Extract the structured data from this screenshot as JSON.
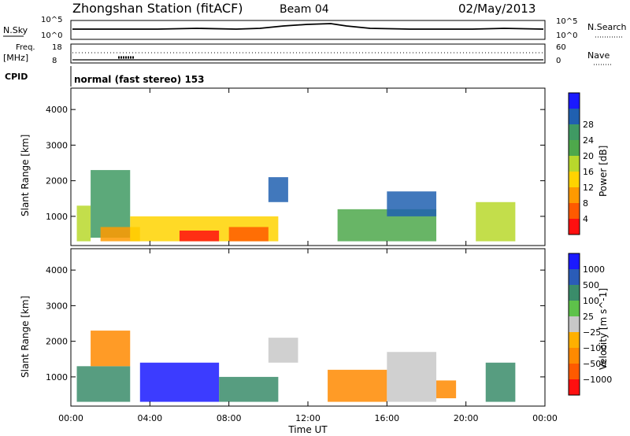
{
  "header": {
    "station": "Zhongshan Station (fitACF)",
    "beam": "Beam 04",
    "date": "02/May/2013"
  },
  "summary_panels": {
    "nsky_label": "N.Sky",
    "nsky_ticks": [
      "10^5",
      "10^0"
    ],
    "nsearch_label": "N.Search",
    "nsearch_ticks": [
      "10^5",
      "10^0"
    ],
    "freq_label": "Freq.",
    "freq_unit": "[MHz]",
    "freq_ticks": [
      "18",
      "8"
    ],
    "nave_label": "Nave",
    "nave_ticks": [
      "60",
      "0"
    ],
    "cpid_label": "CPID",
    "cpid_text": "normal (fast stereo) 153"
  },
  "chart_data": [
    {
      "type": "heatmap",
      "name": "Power",
      "ylabel": "Slant Range [km]",
      "yticks": [
        "1000",
        "2000",
        "3000",
        "4000"
      ],
      "ylim": [
        180,
        4600
      ],
      "xlim": [
        0,
        24
      ],
      "colorbar_label": "Power [dB]",
      "colorbar_ticks": [
        "4",
        "8",
        "12",
        "16",
        "20",
        "24",
        "28"
      ],
      "colorbar_colors": [
        "#1a1aff",
        "#2060b0",
        "#3f9a63",
        "#4ea84b",
        "#b8d82c",
        "#ffd400",
        "#ff9a00",
        "#ff5a00",
        "#ff1010"
      ],
      "regions": [
        {
          "t0": 0.3,
          "t1": 1.0,
          "r0": 300,
          "r1": 1300,
          "level": 4
        },
        {
          "t0": 1.0,
          "t1": 3.0,
          "r0": 400,
          "r1": 2300,
          "level": 2
        },
        {
          "t0": 1.5,
          "t1": 3.5,
          "r0": 300,
          "r1": 700,
          "level": 6
        },
        {
          "t0": 3.0,
          "t1": 10.5,
          "r0": 300,
          "r1": 1000,
          "level": 5
        },
        {
          "t0": 5.5,
          "t1": 7.5,
          "r0": 300,
          "r1": 600,
          "level": 8
        },
        {
          "t0": 8.0,
          "t1": 10.0,
          "r0": 300,
          "r1": 700,
          "level": 7
        },
        {
          "t0": 10.0,
          "t1": 11.0,
          "r0": 1400,
          "r1": 2100,
          "level": 1
        },
        {
          "t0": 13.5,
          "t1": 18.5,
          "r0": 300,
          "r1": 1200,
          "level": 3
        },
        {
          "t0": 16.0,
          "t1": 18.5,
          "r0": 1000,
          "r1": 1700,
          "level": 1
        },
        {
          "t0": 20.5,
          "t1": 22.5,
          "r0": 300,
          "r1": 1400,
          "level": 4
        }
      ]
    },
    {
      "type": "heatmap",
      "name": "Velocity",
      "ylabel": "Slant Range [km]",
      "yticks": [
        "1000",
        "2000",
        "3000",
        "4000"
      ],
      "ylim": [
        180,
        4600
      ],
      "xlim": [
        0,
        24
      ],
      "xlabel": "Time UT",
      "xticks": [
        "00:00",
        "04:00",
        "08:00",
        "12:00",
        "16:00",
        "20:00",
        "00:00"
      ],
      "colorbar_label": "Velocity [m s^-1]",
      "colorbar_ticks": [
        "1000",
        "500",
        "100",
        "25",
        "−25",
        "−100",
        "−500",
        "−1000"
      ],
      "colorbar_colors": [
        "#1a1aff",
        "#2a5cb8",
        "#3a8c6a",
        "#5ec24a",
        "#c8c8c8",
        "#ffb000",
        "#ff8a00",
        "#ff5a00",
        "#ff1010"
      ],
      "regions": [
        {
          "t0": 0.3,
          "t1": 3.0,
          "r0": 300,
          "r1": 1300,
          "level": 2
        },
        {
          "t0": 1.0,
          "t1": 3.0,
          "r0": 1300,
          "r1": 2300,
          "level": 6
        },
        {
          "t0": 3.5,
          "t1": 7.5,
          "r0": 300,
          "r1": 1400,
          "level": 0
        },
        {
          "t0": 7.5,
          "t1": 10.5,
          "r0": 300,
          "r1": 1000,
          "level": 2
        },
        {
          "t0": 10.0,
          "t1": 11.5,
          "r0": 1400,
          "r1": 2100,
          "level": 4
        },
        {
          "t0": 13.0,
          "t1": 16.0,
          "r0": 300,
          "r1": 1200,
          "level": 6
        },
        {
          "t0": 16.0,
          "t1": 18.5,
          "r0": 300,
          "r1": 1700,
          "level": 4
        },
        {
          "t0": 18.5,
          "t1": 19.5,
          "r0": 400,
          "r1": 900,
          "level": 6
        },
        {
          "t0": 21.0,
          "t1": 22.5,
          "r0": 300,
          "r1": 1400,
          "level": 2
        }
      ]
    }
  ]
}
